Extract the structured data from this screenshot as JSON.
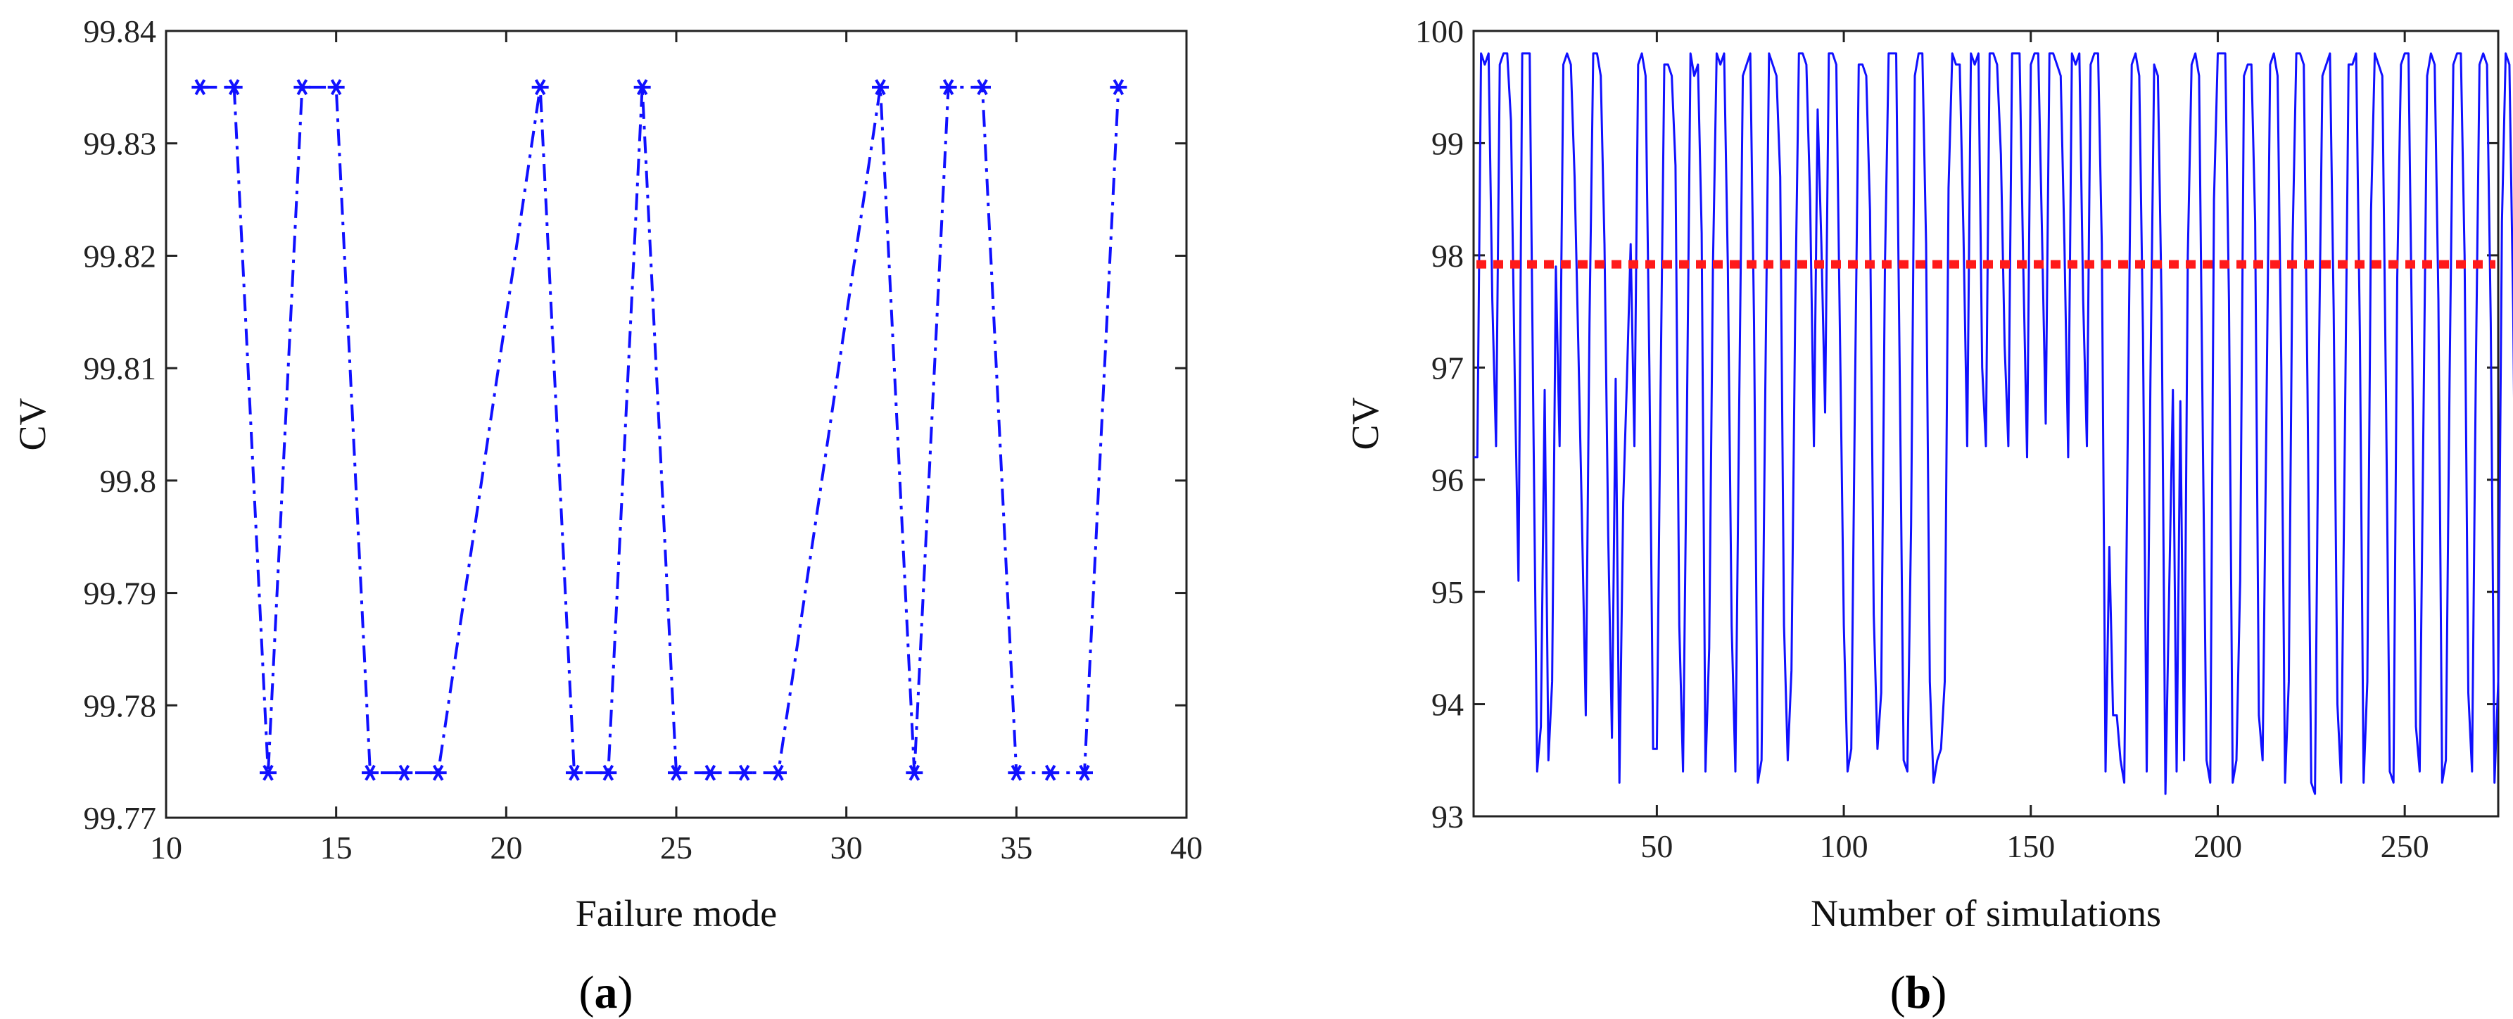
{
  "chart_data": [
    {
      "type": "line",
      "panel_label": "(a)",
      "panel_label_parts": [
        "(",
        "a",
        ")"
      ],
      "title": "",
      "xlabel": "Failure mode",
      "ylabel": "CV",
      "xlim": [
        10,
        40
      ],
      "ylim": [
        99.77,
        99.84
      ],
      "xticks": [
        10,
        15,
        20,
        25,
        30,
        35,
        40
      ],
      "yticks": [
        99.77,
        99.78,
        99.79,
        99.8,
        99.81,
        99.82,
        99.83,
        99.84
      ],
      "xtick_labels": [
        "10",
        "15",
        "20",
        "25",
        "30",
        "35",
        "40"
      ],
      "ytick_labels": [
        "99.77",
        "99.78",
        "99.79",
        "99.8",
        "99.81",
        "99.82",
        "99.83",
        "99.84"
      ],
      "grid": false,
      "line_style": "dash-dot",
      "marker": "asterisk",
      "color": "#1010ff",
      "x": [
        11,
        12,
        13,
        14,
        15,
        16,
        17,
        18,
        21,
        22,
        23,
        24,
        25,
        26,
        27,
        28,
        31,
        32,
        33,
        34,
        35,
        36,
        37,
        38
      ],
      "y": [
        99.835,
        99.835,
        99.774,
        99.835,
        99.835,
        99.774,
        99.774,
        99.774,
        99.835,
        99.774,
        99.774,
        99.835,
        99.774,
        99.774,
        99.774,
        99.774,
        99.835,
        99.774,
        99.835,
        99.835,
        99.774,
        99.774,
        99.774,
        99.835
      ]
    },
    {
      "type": "line",
      "panel_label": "(b)",
      "panel_label_parts": [
        "(",
        "b",
        ")"
      ],
      "title": "",
      "xlabel": "Number of simulations",
      "ylabel": "CV",
      "xlim": [
        1,
        275
      ],
      "ylim": [
        93,
        100
      ],
      "xticks": [
        50,
        100,
        150,
        200,
        250
      ],
      "yticks": [
        93,
        94,
        95,
        96,
        97,
        98,
        99,
        100
      ],
      "xtick_labels": [
        "50",
        "100",
        "150",
        "200",
        "250"
      ],
      "ytick_labels": [
        "93",
        "94",
        "95",
        "96",
        "97",
        "98",
        "99",
        "100"
      ],
      "grid": false,
      "color": "#1010ff",
      "mean_line": {
        "y": 97.92,
        "color": "#ff1a1a",
        "style": "dotted"
      },
      "x_start": 1,
      "values": [
        96.2,
        96.2,
        99.8,
        99.7,
        99.8,
        97.6,
        96.3,
        99.7,
        99.8,
        99.8,
        99.2,
        96.9,
        95.1,
        99.8,
        99.8,
        99.8,
        96.5,
        93.4,
        93.8,
        96.8,
        93.5,
        94.2,
        97.9,
        96.3,
        99.7,
        99.8,
        99.7,
        98.7,
        97.2,
        95.6,
        93.9,
        97.4,
        99.8,
        99.8,
        99.6,
        98.1,
        95.5,
        93.7,
        96.9,
        93.3,
        95.8,
        96.9,
        98.1,
        96.3,
        99.7,
        99.8,
        99.6,
        97.0,
        93.6,
        93.6,
        96.8,
        99.7,
        99.7,
        99.6,
        98.8,
        94.7,
        93.4,
        96.4,
        99.8,
        99.6,
        99.7,
        98.2,
        93.4,
        94.5,
        97.9,
        99.8,
        99.7,
        99.8,
        97.9,
        94.7,
        93.4,
        96.6,
        99.6,
        99.7,
        99.8,
        97.4,
        93.3,
        93.5,
        96.8,
        99.8,
        99.7,
        99.6,
        98.7,
        94.7,
        93.5,
        94.3,
        97.5,
        99.8,
        99.8,
        99.7,
        98.5,
        96.3,
        99.3,
        98.1,
        96.6,
        99.8,
        99.8,
        99.7,
        97.2,
        94.7,
        93.4,
        93.6,
        96.8,
        99.7,
        99.7,
        99.6,
        98.4,
        94.8,
        93.6,
        94.1,
        97.9,
        99.8,
        99.8,
        99.8,
        96.8,
        93.5,
        93.4,
        95.6,
        99.6,
        99.8,
        99.8,
        98.1,
        94.2,
        93.3,
        93.5,
        93.6,
        94.2,
        98.6,
        99.8,
        99.7,
        99.7,
        98.2,
        96.3,
        99.8,
        99.7,
        99.8,
        97.0,
        96.3,
        99.8,
        99.8,
        99.7,
        98.9,
        97.2,
        96.3,
        99.8,
        99.8,
        99.8,
        97.9,
        96.2,
        99.7,
        99.8,
        99.8,
        98.2,
        96.5,
        99.8,
        99.8,
        99.7,
        99.6,
        98.1,
        96.2,
        99.8,
        99.7,
        99.8,
        97.6,
        96.3,
        99.7,
        99.8,
        99.8,
        98.1,
        93.4,
        95.4,
        93.9,
        93.9,
        93.5,
        93.3,
        96.6,
        99.7,
        99.8,
        99.6,
        97.3,
        93.4,
        96.9,
        99.7,
        99.6,
        97.5,
        93.2,
        95.0,
        96.8,
        93.4,
        96.7,
        93.5,
        98.0,
        99.7,
        99.8,
        99.6,
        96.4,
        93.5,
        93.3,
        98.5,
        99.8,
        99.8,
        99.8,
        97.6,
        93.3,
        93.5,
        95.1,
        99.6,
        99.7,
        99.7,
        98.3,
        93.9,
        93.5,
        96.5,
        99.7,
        99.8,
        99.6,
        97.0,
        93.3,
        94.2,
        98.1,
        99.8,
        99.8,
        99.7,
        96.8,
        93.3,
        93.2,
        96.9,
        99.6,
        99.7,
        99.8,
        97.5,
        94.0,
        93.3,
        96.4,
        99.7,
        99.7,
        99.8,
        97.3,
        93.3,
        94.2,
        98.4,
        99.8,
        99.7,
        99.6,
        96.7,
        93.4,
        93.3,
        97.8,
        99.7,
        99.8,
        99.8,
        97.1,
        93.8,
        93.4,
        96.5,
        99.6,
        99.8,
        99.7,
        97.6,
        93.3,
        93.5,
        96.9,
        99.7,
        99.8,
        99.8,
        98.0,
        94.1,
        93.4,
        96.9,
        99.7,
        99.8,
        99.7,
        97.4,
        93.3,
        94.2,
        98.3,
        99.8,
        99.7,
        97.5,
        94.1
      ]
    }
  ]
}
